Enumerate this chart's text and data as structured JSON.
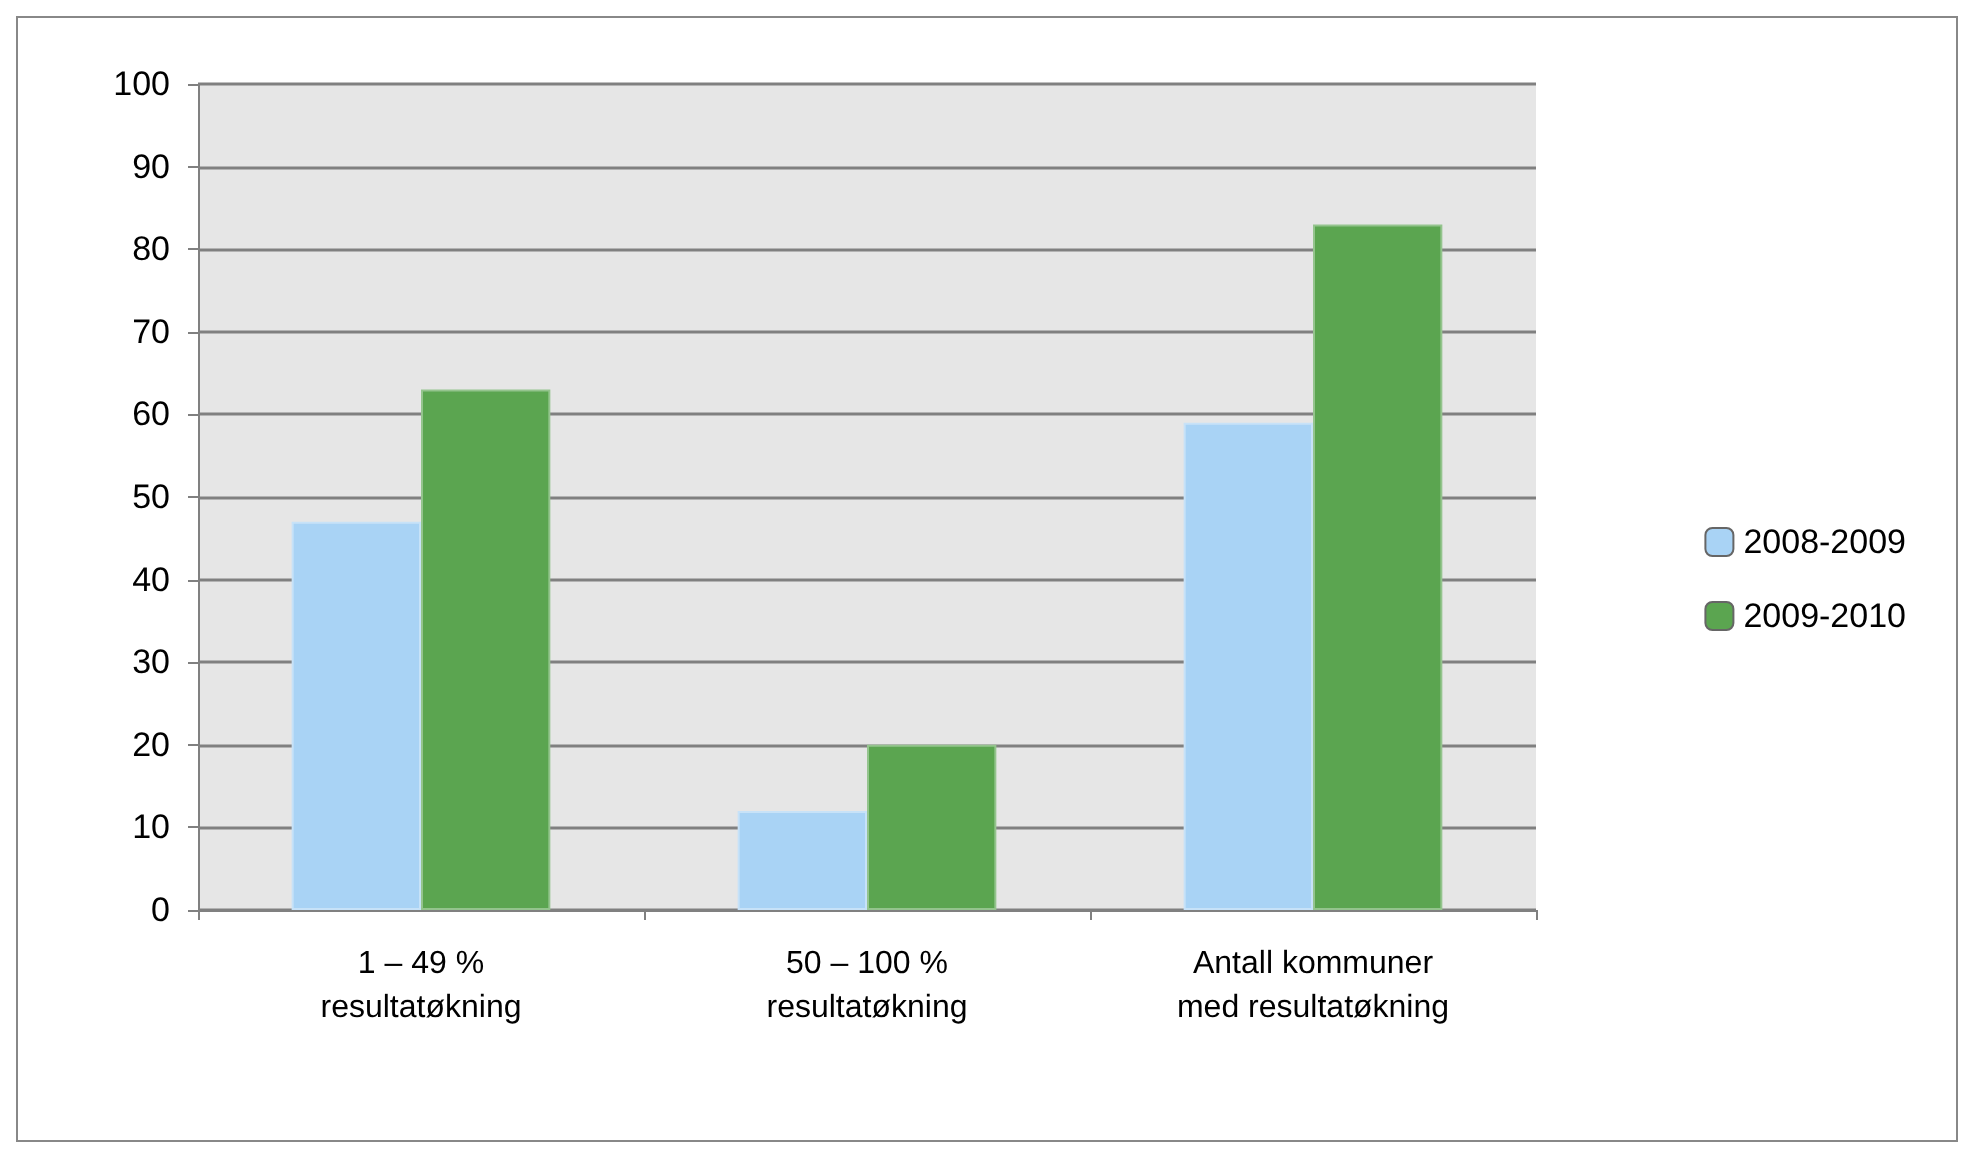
{
  "chart_data": {
    "type": "bar",
    "categories": [
      "1 – 49 %\nresultatøkning",
      "50 – 100 %\nresultatøkning",
      "Antall kommuner\nmed resultatøkning"
    ],
    "series": [
      {
        "name": "2008-2009",
        "color": "#a9d3f5",
        "values": [
          47,
          12,
          59
        ]
      },
      {
        "name": "2009-2010",
        "color": "#5ba550",
        "values": [
          63,
          20,
          83
        ]
      }
    ],
    "ylim": [
      0,
      100
    ],
    "yticks": [
      0,
      10,
      20,
      30,
      40,
      50,
      60,
      70,
      80,
      90,
      100
    ],
    "grid": "y",
    "legend": "right"
  }
}
